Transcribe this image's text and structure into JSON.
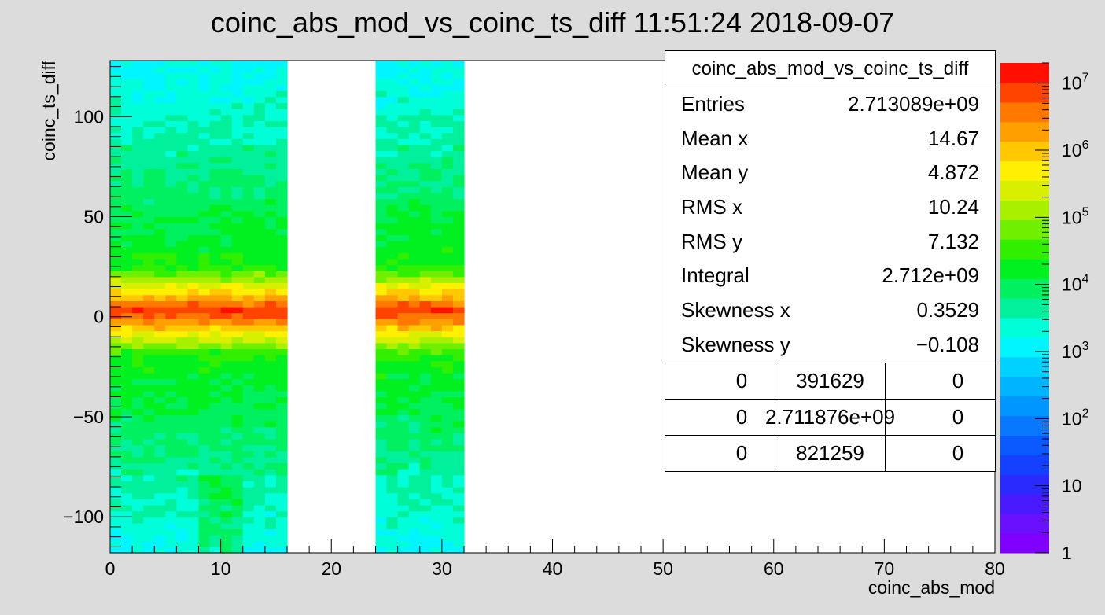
{
  "title": "coinc_abs_mod_vs_coinc_ts_diff  11:51:24  2018-09-07",
  "stats": {
    "name": "coinc_abs_mod_vs_coinc_ts_diff",
    "rows": [
      {
        "label": "Entries",
        "value": "2.713089e+09"
      },
      {
        "label": "Mean x",
        "value": "14.67"
      },
      {
        "label": "Mean y",
        "value": "4.872"
      },
      {
        "label": "RMS x",
        "value": "10.24"
      },
      {
        "label": "RMS y",
        "value": "7.132"
      },
      {
        "label": "Integral",
        "value": "2.712e+09"
      },
      {
        "label": "Skewness x",
        "value": "0.3529"
      },
      {
        "label": "Skewness y",
        "value": "−0.108"
      }
    ],
    "grid": [
      [
        "0",
        "391629",
        "0"
      ],
      [
        "0",
        "2.711876e+09",
        "0"
      ],
      [
        "0",
        "821259",
        "0"
      ]
    ]
  },
  "chart_data": {
    "type": "heatmap",
    "title": "coinc_abs_mod_vs_coinc_ts_diff  11:51:24  2018-09-07",
    "xlabel": "coinc_abs_mod",
    "ylabel": "coinc_ts_diff",
    "xlim": [
      0,
      80
    ],
    "ylim": [
      -118,
      128
    ],
    "x_ticks": [
      0,
      10,
      20,
      30,
      40,
      50,
      60,
      70,
      80
    ],
    "y_ticks": [
      -100,
      -50,
      0,
      50,
      100
    ],
    "y_tick_labels": [
      "−100",
      "−50",
      "0",
      "50",
      "100"
    ],
    "z_scale": "log",
    "z_range": [
      1,
      20000000
    ],
    "colorbar_labels": [
      "1",
      "10",
      "10^2",
      "10^3",
      "10^4",
      "10^5",
      "10^6",
      "10^7"
    ],
    "filled_x_ranges": [
      [
        0,
        16
      ],
      [
        24,
        32
      ]
    ],
    "peak_y": 3,
    "peak_value": 10000000,
    "colors": {
      "background": "#dcdcdc",
      "palette": [
        "#7f00ff",
        "#6a10ff",
        "#4a1aff",
        "#2a2aff",
        "#1440ff",
        "#0a5aff",
        "#0878ff",
        "#0096ff",
        "#00b4ff",
        "#00d2ff",
        "#00f5ff",
        "#00ffd8",
        "#00f09c",
        "#00f060",
        "#00f020",
        "#30f000",
        "#70f000",
        "#a8f000",
        "#d8f000",
        "#ffef00",
        "#ffc800",
        "#ffa000",
        "#ff7800",
        "#ff4400",
        "#ff1000"
      ]
    }
  }
}
